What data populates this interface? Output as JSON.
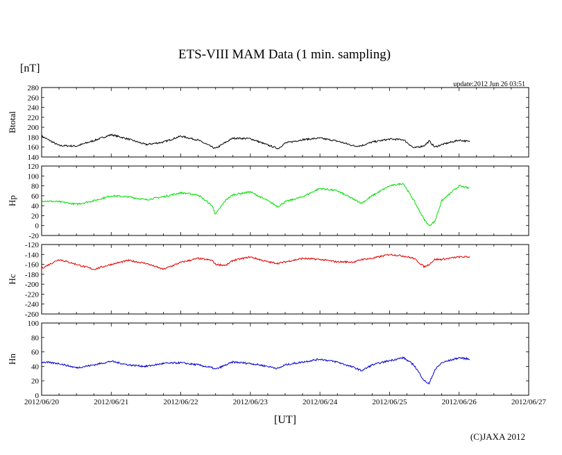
{
  "chart_data": {
    "type": "line",
    "title": "ETS-VIII MAM Data (1 min. sampling)",
    "unit_label": "[nT]",
    "update_label": "update:2012 Jun 26 03:51",
    "xlabel": "[UT]",
    "copyright": "(C)JAXA 2012",
    "x_ticks": [
      "2012/06/20",
      "2012/06/21",
      "2012/06/22",
      "2012/06/23",
      "2012/06/24",
      "2012/06/25",
      "2012/06/26",
      "2012/06/27"
    ],
    "xlim": [
      "2012/06/20",
      "2012/06/27"
    ],
    "x_days": [
      0,
      0.25,
      0.5,
      0.75,
      1.0,
      1.25,
      1.5,
      1.75,
      2.0,
      2.25,
      2.45,
      2.5,
      2.65,
      2.75,
      3.0,
      3.25,
      3.4,
      3.5,
      3.75,
      4.0,
      4.25,
      4.5,
      4.6,
      4.75,
      5.0,
      5.2,
      5.35,
      5.5,
      5.57,
      5.65,
      5.75,
      6.0,
      6.15
    ],
    "series": [
      {
        "name": "Btotal",
        "color": "#000000",
        "ylim": [
          140,
          280
        ],
        "y_ticks": [
          140,
          160,
          180,
          200,
          220,
          240,
          260,
          280
        ],
        "values": [
          182,
          163,
          162,
          173,
          185,
          176,
          165,
          170,
          182,
          174,
          160,
          157,
          170,
          178,
          177,
          164,
          157,
          168,
          175,
          178,
          172,
          162,
          163,
          170,
          176,
          175,
          158,
          163,
          172,
          160,
          165,
          174,
          171
        ]
      },
      {
        "name": "Hp",
        "color": "#00dd00",
        "ylim": [
          -20,
          120
        ],
        "y_ticks": [
          -20,
          0,
          20,
          40,
          60,
          80,
          100,
          120
        ],
        "values": [
          50,
          48,
          43,
          50,
          60,
          58,
          52,
          58,
          66,
          62,
          40,
          23,
          52,
          62,
          68,
          50,
          38,
          48,
          58,
          75,
          70,
          52,
          45,
          60,
          80,
          85,
          50,
          12,
          0,
          8,
          50,
          80,
          75
        ]
      },
      {
        "name": "Hc",
        "color": "#e00000",
        "ylim": [
          -260,
          -120
        ],
        "y_ticks": [
          -120,
          -140,
          -160,
          -180,
          -200,
          -220,
          -240,
          -260
        ],
        "values": [
          -168,
          -150,
          -160,
          -170,
          -160,
          -152,
          -158,
          -170,
          -156,
          -148,
          -152,
          -160,
          -162,
          -152,
          -145,
          -155,
          -158,
          -155,
          -148,
          -150,
          -155,
          -155,
          -150,
          -148,
          -140,
          -143,
          -148,
          -165,
          -160,
          -150,
          -150,
          -145,
          -145
        ]
      },
      {
        "name": "Hn",
        "color": "#0000cc",
        "ylim": [
          0,
          100
        ],
        "y_ticks": [
          0,
          20,
          40,
          60,
          80,
          100
        ],
        "values": [
          46,
          44,
          38,
          42,
          47,
          42,
          40,
          44,
          45,
          42,
          38,
          36,
          42,
          46,
          44,
          40,
          37,
          42,
          46,
          50,
          46,
          38,
          34,
          42,
          48,
          52,
          42,
          20,
          16,
          35,
          45,
          52,
          50
        ]
      }
    ]
  }
}
